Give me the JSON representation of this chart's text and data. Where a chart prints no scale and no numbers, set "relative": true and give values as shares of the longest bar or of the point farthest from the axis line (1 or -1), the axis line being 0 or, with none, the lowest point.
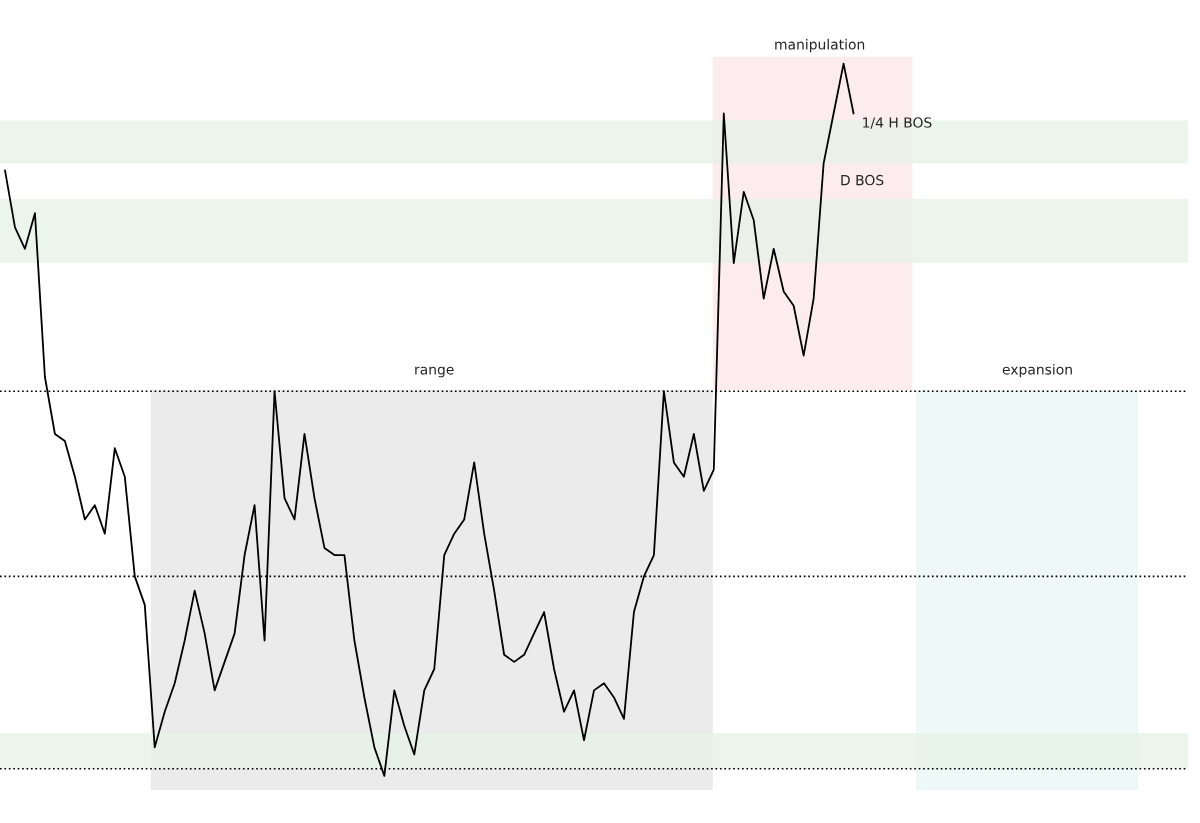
{
  "chart_data": {
    "type": "line",
    "relative": true,
    "color": "#000000",
    "categories": [
      null,
      null,
      null,
      null,
      null,
      null,
      null,
      null,
      null,
      null,
      null,
      null,
      null,
      null,
      null,
      null,
      null,
      null,
      null,
      null,
      null,
      null,
      null,
      null,
      null,
      null,
      null,
      null,
      null,
      null,
      null,
      null,
      null,
      null,
      null,
      null,
      null,
      null,
      null,
      null,
      null,
      null,
      null,
      null,
      null,
      null,
      null,
      null,
      null,
      null,
      null,
      null,
      null,
      null,
      null,
      null,
      null,
      null,
      null,
      null,
      null,
      null,
      null,
      null,
      null,
      null,
      null,
      null,
      null,
      null,
      null,
      null,
      null,
      null,
      null,
      null,
      null,
      null,
      null,
      null,
      null,
      null,
      null,
      null,
      null,
      null,
      null,
      null,
      null,
      null,
      null,
      null,
      null,
      null,
      null,
      null,
      null,
      null,
      null,
      null,
      null,
      null,
      null,
      null,
      null,
      null,
      null,
      null,
      null,
      null,
      null,
      null,
      null,
      null,
      null,
      null,
      null,
      null,
      null
    ],
    "values": [
      0.85,
      0.77,
      0.74,
      0.79,
      0.56,
      0.48,
      0.47,
      0.42,
      0.36,
      0.38,
      0.34,
      0.46,
      0.42,
      0.28,
      0.24,
      0.04,
      0.09,
      0.13,
      0.19,
      0.26,
      0.2,
      0.12,
      0.16,
      0.2,
      0.31,
      0.38,
      0.19,
      0.54,
      0.39,
      0.36,
      0.48,
      0.39,
      0.32,
      0.31,
      0.31,
      0.19,
      0.11,
      0.04,
      0,
      0.12,
      0.07,
      0.03,
      0.12,
      0.15,
      0.31,
      0.34,
      0.36,
      0.44,
      0.34,
      0.26,
      0.17,
      0.16,
      0.17,
      0.2,
      0.23,
      0.15,
      0.09,
      0.12,
      0.05,
      0.12,
      0.13,
      0.11,
      0.08,
      0.23,
      0.28,
      0.31,
      0.54,
      0.44,
      0.42,
      0.48,
      0.4,
      0.43,
      0.93,
      0.72,
      0.82,
      0.78,
      0.67,
      0.74,
      0.68,
      0.66,
      0.59,
      0.67,
      0.86,
      0.93,
      1,
      0.93,
      null,
      null,
      null,
      null,
      null,
      null,
      null,
      null,
      null,
      null,
      null,
      null,
      null,
      null,
      null,
      null,
      null,
      null,
      null,
      null,
      null,
      null,
      null,
      null,
      null,
      null,
      null,
      null,
      null,
      null,
      null,
      null,
      null
    ],
    "line_style": "solid",
    "ref_lines": [
      {
        "axis": "y",
        "value": 0.54,
        "label": null,
        "line_style": "dotted",
        "color": "#000000"
      },
      {
        "axis": "y",
        "value": 0.28,
        "label": null,
        "line_style": "dotted",
        "color": "#000000"
      },
      {
        "axis": "y",
        "value": 0.01,
        "label": null,
        "line_style": "dotted",
        "color": "#000000"
      }
    ],
    "bands": [
      {
        "axis": "y",
        "from": 0.86,
        "to": 0.92,
        "label": null,
        "color": "#e6f2e6"
      },
      {
        "axis": "y",
        "from": 0.72,
        "to": 0.81,
        "label": null,
        "color": "#e6f2e6"
      },
      {
        "axis": "y",
        "from": 0.01,
        "to": 0.06,
        "label": null,
        "color": "#e6f2e6"
      }
    ],
    "annotations": [
      "range",
      "manipulation",
      "expansion",
      "1/4 H BOS",
      "D BOS"
    ]
  }
}
